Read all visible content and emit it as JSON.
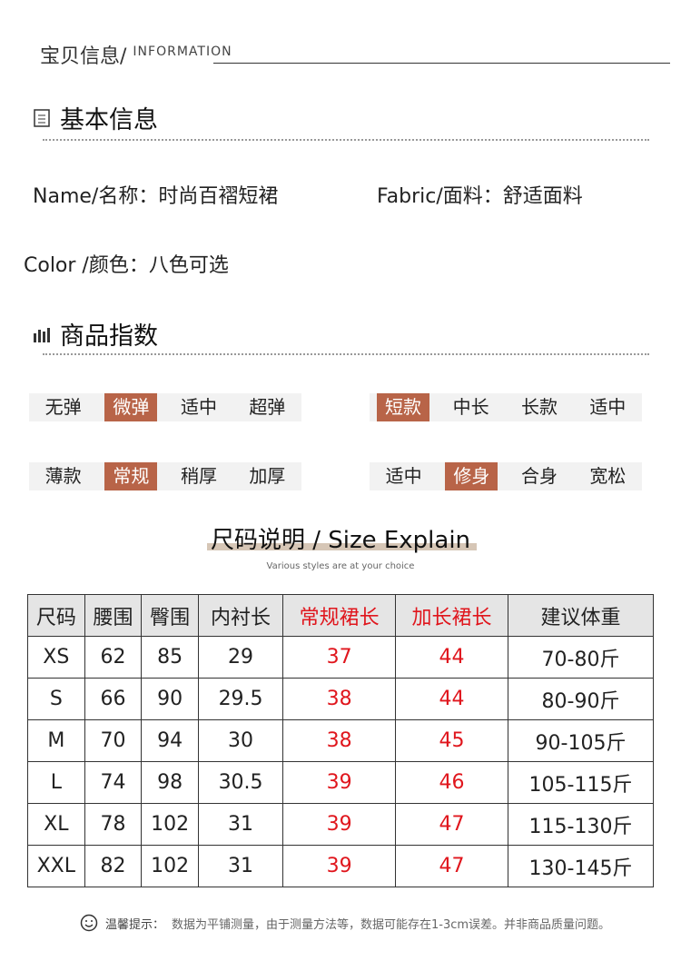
{
  "header": {
    "title_cn": "宝贝信息/",
    "title_en": "INFORMATION"
  },
  "basic": {
    "title": "基本信息",
    "name_label": "Name/名称：",
    "name_value": "时尚百褶短裙",
    "fabric_label": "Fabric/面料：",
    "fabric_value": "舒适面料",
    "color_label": "Color /颜色：",
    "color_value": "八色可选"
  },
  "index": {
    "title": "商品指数",
    "groups": [
      {
        "options": [
          "无弹",
          "微弹",
          "适中",
          "超弹"
        ],
        "selected": 1
      },
      {
        "options": [
          "短款",
          "中长",
          "长款",
          "适中"
        ],
        "selected": 0
      },
      {
        "options": [
          "薄款",
          "常规",
          "稍厚",
          "加厚"
        ],
        "selected": 1
      },
      {
        "options": [
          "适中",
          "修身",
          "合身",
          "宽松"
        ],
        "selected": 1
      }
    ]
  },
  "size": {
    "title": "尺码说明 / Size Explain",
    "subtitle": "Various styles are at your choice",
    "headers": [
      "尺码",
      "腰围",
      "臀围",
      "内衬长",
      "常规裙长",
      "加长裙长",
      "建议体重"
    ],
    "rows": [
      [
        "XS",
        "62",
        "85",
        "29",
        "37",
        "44",
        "70-80斤"
      ],
      [
        "S",
        "66",
        "90",
        "29.5",
        "38",
        "44",
        "80-90斤"
      ],
      [
        "M",
        "70",
        "94",
        "30",
        "38",
        "45",
        "90-105斤"
      ],
      [
        "L",
        "74",
        "98",
        "30.5",
        "39",
        "46",
        "105-115斤"
      ],
      [
        "XL",
        "78",
        "102",
        "31",
        "39",
        "47",
        "115-130斤"
      ],
      [
        "XXL",
        "82",
        "102",
        "31",
        "39",
        "47",
        "130-145斤"
      ]
    ]
  },
  "footer": {
    "label": "温馨提示：",
    "text": "数据为平铺测量，由于测量方法等，数据可能存在1-3cm误差。并非商品质量问题。"
  },
  "colors": {
    "accent": "#b86448",
    "red": "#e0161d"
  }
}
